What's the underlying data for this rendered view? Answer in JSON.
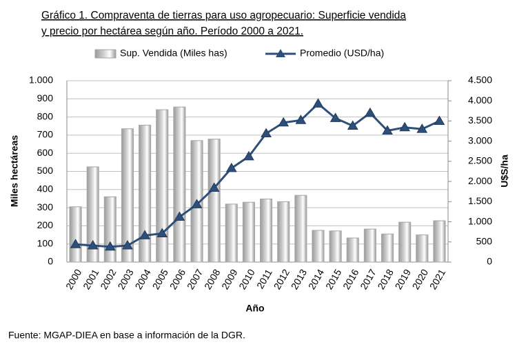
{
  "chart_data": {
    "type": "bar_line",
    "title": [
      "Gráfico 1. Compraventa de tierras para uso agropecuario: Superficie vendida",
      "y precio por hectárea según año. Período 2000 a 2021."
    ],
    "x_label": "Año",
    "y_label": "Miles hectáreas",
    "y2_label": "U$S/ha",
    "categories": [
      "2000",
      "2001",
      "2002",
      "2003",
      "2004",
      "2005",
      "2006",
      "2007",
      "2008",
      "2009",
      "2010",
      "2011",
      "2012",
      "2013",
      "2014",
      "2015",
      "2016",
      "2017",
      "2018",
      "2019",
      "2020",
      "2021"
    ],
    "series": [
      {
        "name": "Sup. Vendida (Miles has)",
        "type": "bar",
        "color": "#d4d4d4",
        "values": [
          305,
          525,
          360,
          735,
          755,
          840,
          855,
          670,
          678,
          320,
          330,
          348,
          333,
          368,
          175,
          172,
          133,
          182,
          155,
          220,
          150,
          228
        ]
      },
      {
        "name": "Promedio (USD/ha)",
        "type": "line",
        "axis": "y2",
        "color": "#2e4f7a",
        "values": [
          440,
          410,
          380,
          410,
          660,
          710,
          1120,
          1430,
          1840,
          2330,
          2620,
          3190,
          3460,
          3520,
          3930,
          3570,
          3380,
          3700,
          3260,
          3340,
          3300,
          3500
        ]
      }
    ],
    "ylim": [
      0,
      1000
    ],
    "yticks": [
      0,
      100,
      200,
      300,
      400,
      500,
      600,
      700,
      800,
      900,
      {
        "value": 1000,
        "label": "1.000"
      }
    ],
    "y2lim": [
      0,
      4500
    ],
    "y2ticks": [
      0,
      500,
      {
        "value": 1000,
        "label": "1.000"
      },
      {
        "value": 1500,
        "label": "1.500"
      },
      {
        "value": 2000,
        "label": "2.000"
      },
      {
        "value": 2500,
        "label": "2.500"
      },
      {
        "value": 3000,
        "label": "3.000"
      },
      {
        "value": 3500,
        "label": "3.500"
      },
      {
        "value": 4000,
        "label": "4.000"
      },
      {
        "value": 4500,
        "label": "4.500"
      }
    ],
    "grid": true
  },
  "source": "Fuente: MGAP-DIEA en base a información de la DGR."
}
